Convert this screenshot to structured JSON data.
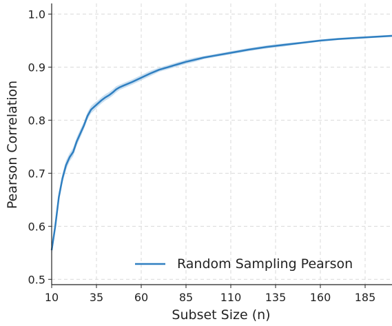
{
  "chart_data": {
    "type": "line",
    "title": "",
    "xlabel": "Subset Size (n)",
    "ylabel": "Pearson Correlation",
    "xlim": [
      10,
      200
    ],
    "ylim": [
      0.49,
      1.02
    ],
    "xticks": [
      10,
      35,
      60,
      85,
      110,
      135,
      160,
      185
    ],
    "yticks": [
      0.5,
      0.6,
      0.7,
      0.8,
      0.9,
      1.0
    ],
    "xtick_labels": [
      "10",
      "35",
      "60",
      "85",
      "110",
      "135",
      "160",
      "185"
    ],
    "ytick_labels": [
      "0.5",
      "0.6",
      "0.7",
      "0.8",
      "0.9",
      "1.0"
    ],
    "grid": true,
    "legend_position": "lower-right",
    "series": [
      {
        "name": "Random Sampling Pearson",
        "color": "#2f7fc1",
        "band_color": "#a9cbe8",
        "x": [
          10,
          12,
          14,
          16,
          18,
          20,
          22,
          24,
          26,
          28,
          30,
          32,
          34,
          36,
          38,
          40,
          42,
          44,
          46,
          48,
          50,
          55,
          60,
          65,
          70,
          75,
          80,
          85,
          90,
          95,
          100,
          110,
          120,
          130,
          140,
          150,
          160,
          170,
          180,
          190,
          200
        ],
        "y": [
          0.555,
          0.6,
          0.655,
          0.69,
          0.715,
          0.73,
          0.74,
          0.76,
          0.775,
          0.79,
          0.808,
          0.82,
          0.826,
          0.832,
          0.838,
          0.843,
          0.847,
          0.852,
          0.858,
          0.862,
          0.865,
          0.872,
          0.88,
          0.888,
          0.895,
          0.9,
          0.905,
          0.91,
          0.914,
          0.918,
          0.921,
          0.927,
          0.933,
          0.938,
          0.942,
          0.946,
          0.95,
          0.953,
          0.955,
          0.957,
          0.959
        ],
        "band": [
          0.01,
          0.01,
          0.01,
          0.009,
          0.009,
          0.008,
          0.008,
          0.008,
          0.008,
          0.007,
          0.007,
          0.007,
          0.007,
          0.006,
          0.006,
          0.006,
          0.006,
          0.006,
          0.006,
          0.005,
          0.005,
          0.005,
          0.005,
          0.005,
          0.004,
          0.004,
          0.004,
          0.004,
          0.004,
          0.003,
          0.003,
          0.003,
          0.003,
          0.003,
          0.003,
          0.002,
          0.002,
          0.002,
          0.002,
          0.002,
          0.002
        ]
      }
    ]
  }
}
